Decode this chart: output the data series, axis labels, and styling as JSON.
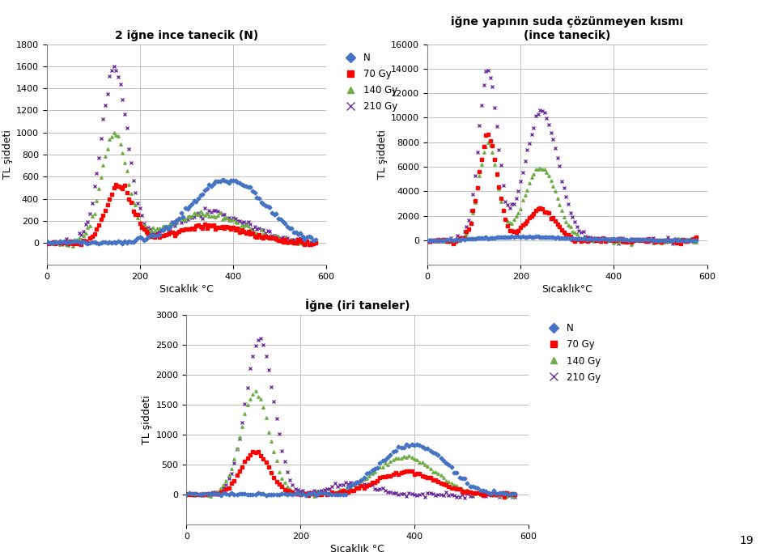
{
  "title1": "2 iğne ince tanecik (N)",
  "title2": "iğne yapının suda çözünmeyen kısmı\n(ince tanecik)",
  "title3": "İğne (iri taneler)",
  "ylabel": "TL şiddeti",
  "xlabel": "Sıcaklık °C",
  "xlabel2": "Sıcaklık°C",
  "legend_labels": [
    "N",
    "70 Gy",
    "140 Gy",
    "210 Gy"
  ],
  "colors": [
    "#4472C4",
    "#FF0000",
    "#70AD47",
    "#7030A0"
  ],
  "plot1": {
    "ylim": [
      -200,
      1800
    ],
    "yticks": [
      0,
      200,
      400,
      600,
      800,
      1000,
      1200,
      1400,
      1600,
      1800
    ],
    "xlim": [
      0,
      600
    ],
    "xticks": [
      0,
      200,
      400,
      600
    ]
  },
  "plot2": {
    "ylim": [
      -2000,
      16000
    ],
    "yticks": [
      0,
      2000,
      4000,
      6000,
      8000,
      10000,
      12000,
      14000,
      16000
    ],
    "xlim": [
      0,
      600
    ],
    "xticks": [
      0,
      200,
      400,
      600
    ]
  },
  "plot3": {
    "ylim": [
      -500,
      3000
    ],
    "yticks": [
      0,
      500,
      1000,
      1500,
      2000,
      2500,
      3000
    ],
    "xlim": [
      0,
      600
    ],
    "xticks": [
      0,
      200,
      400,
      600
    ]
  },
  "page_number": "19",
  "background_color": "#FFFFFF",
  "grid_color": "#C0C0C0"
}
